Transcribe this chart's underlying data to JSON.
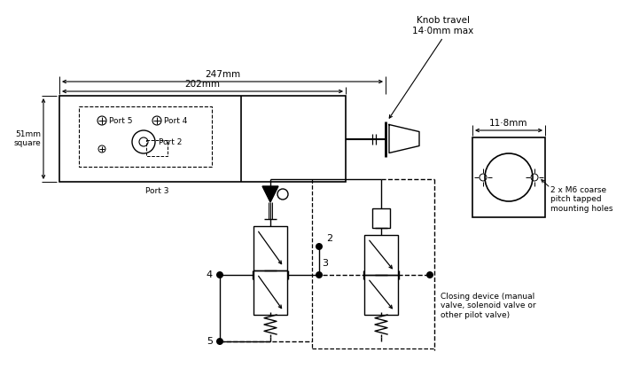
{
  "bg_color": "#ffffff",
  "line_color": "#000000",
  "dim_247": "247mm",
  "dim_202": "202mm",
  "dim_51": "51mm\nsquare",
  "dim_118": "11·8mm",
  "dim_knob": "Knob travel\n14·0mm max",
  "label_port2": "Port 2",
  "label_port3": "Port 3",
  "label_port4": "Port 4",
  "label_port5": "Port 5",
  "label_2xM6": "2 x M6 coarse\npitch tapped\nmounting holes",
  "label_closing": "Closing device (manual\nvalve, solenoid valve or\nother pilot valve)"
}
